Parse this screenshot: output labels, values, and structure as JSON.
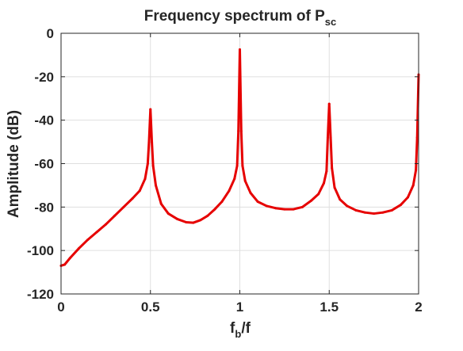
{
  "chart_data": {
    "type": "line",
    "title_main": "Frequency spectrum of P",
    "title_sub": "sc",
    "xlabel_main": "f",
    "xlabel_sub": "b",
    "xlabel_rest": "/f",
    "ylabel": "Amplitude (dB)",
    "xlim": [
      0,
      2
    ],
    "ylim": [
      -120,
      0
    ],
    "x_ticks": [
      0,
      0.5,
      1,
      1.5,
      2
    ],
    "x_tick_labels": [
      "0",
      "0.5",
      "1",
      "1.5",
      "2"
    ],
    "y_ticks": [
      0,
      -20,
      -40,
      -60,
      -80,
      -100,
      -120
    ],
    "y_tick_labels": [
      "0",
      "-20",
      "-40",
      "-60",
      "-80",
      "-100",
      "-120"
    ],
    "grid": true,
    "series": [
      {
        "color": "#e60000",
        "x": [
          0,
          0.02,
          0.05,
          0.1,
          0.15,
          0.2,
          0.25,
          0.3,
          0.35,
          0.4,
          0.44,
          0.47,
          0.485,
          0.492,
          0.5,
          0.508,
          0.515,
          0.53,
          0.56,
          0.6,
          0.65,
          0.7,
          0.74,
          0.78,
          0.82,
          0.86,
          0.9,
          0.94,
          0.97,
          0.985,
          0.992,
          1.0,
          1.008,
          1.015,
          1.03,
          1.06,
          1.1,
          1.15,
          1.2,
          1.25,
          1.3,
          1.35,
          1.4,
          1.44,
          1.47,
          1.485,
          1.492,
          1.5,
          1.508,
          1.515,
          1.53,
          1.56,
          1.6,
          1.65,
          1.7,
          1.75,
          1.8,
          1.85,
          1.9,
          1.94,
          1.97,
          1.985,
          1.992,
          2.0
        ],
        "y": [
          -107,
          -106.5,
          -103.5,
          -99,
          -95,
          -91.5,
          -88,
          -84,
          -80,
          -76,
          -72.5,
          -67,
          -60,
          -50,
          -35,
          -50,
          -61,
          -70,
          -78.5,
          -83,
          -85.5,
          -87,
          -87.2,
          -86,
          -84,
          -81,
          -77.5,
          -72.5,
          -67,
          -61,
          -45,
          -7.5,
          -45,
          -61,
          -68,
          -73.5,
          -77.5,
          -79.5,
          -80.5,
          -81,
          -81,
          -80,
          -77,
          -74,
          -69,
          -63.5,
          -48,
          -32.5,
          -48,
          -62,
          -71,
          -76.5,
          -79.5,
          -81.5,
          -82.5,
          -83,
          -82.5,
          -81.5,
          -79,
          -75.5,
          -70,
          -63,
          -48,
          -19
        ]
      }
    ]
  }
}
